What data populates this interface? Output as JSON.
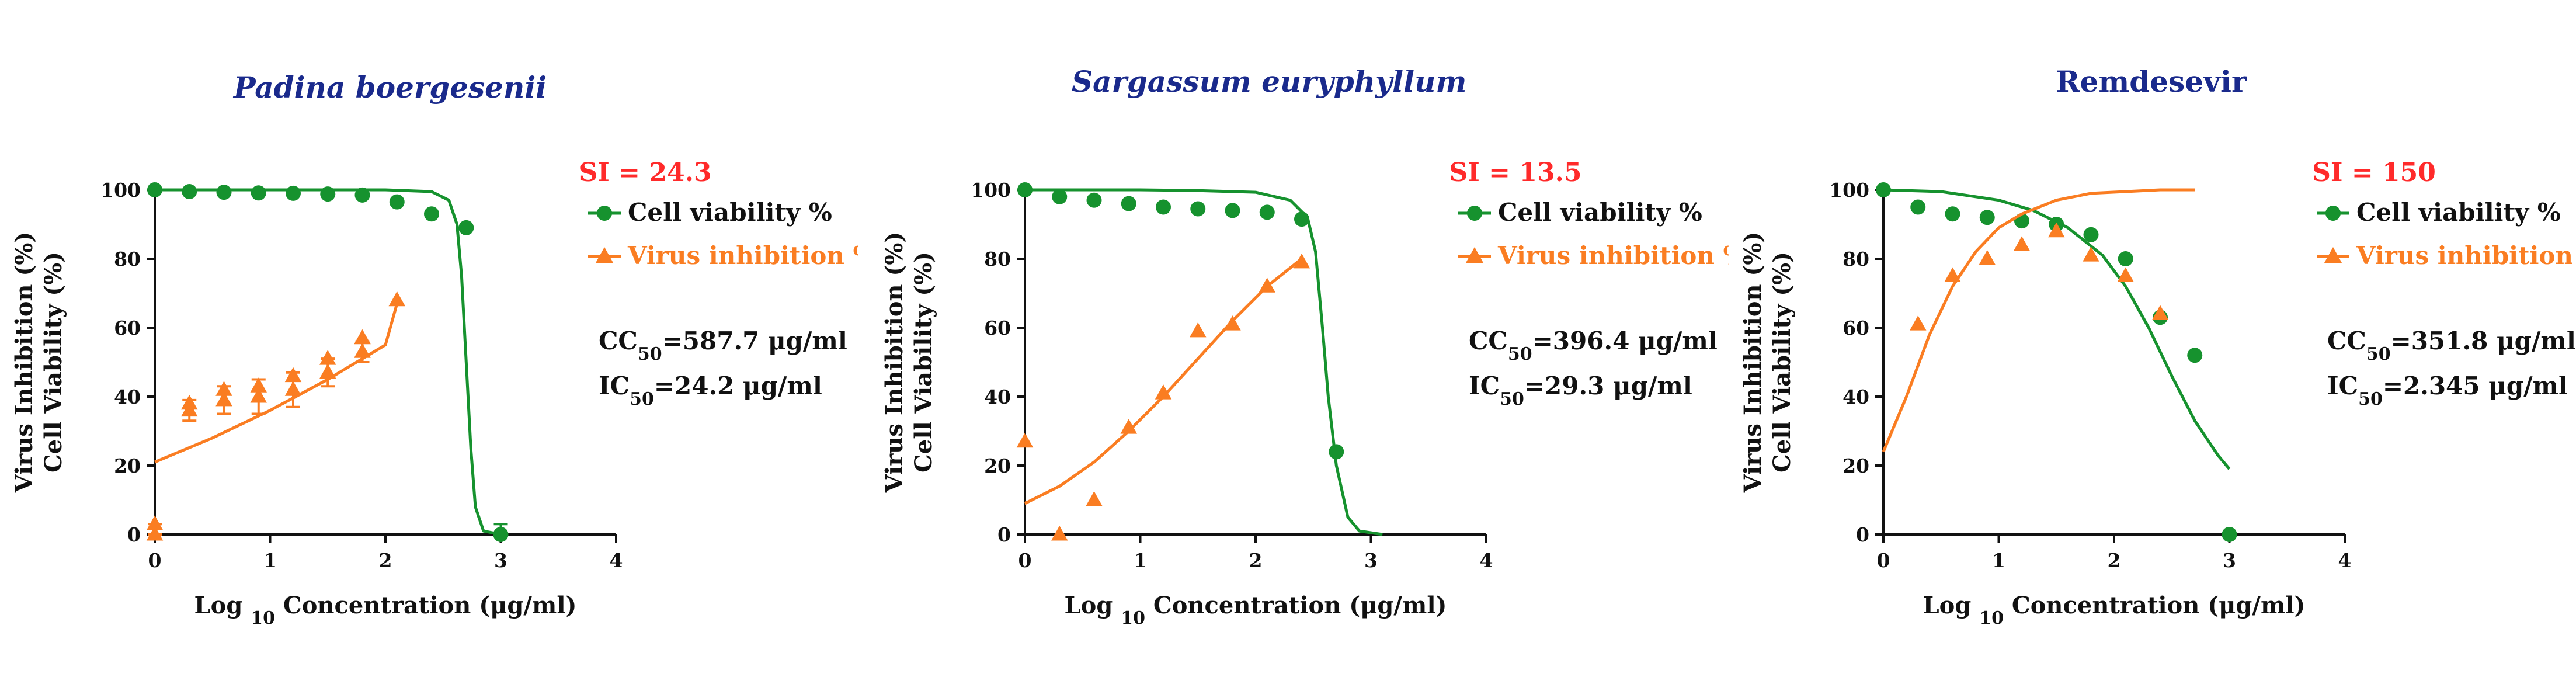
{
  "figure": {
    "colors": {
      "cell": "#16922e",
      "virus": "#fa7d22",
      "axis": "#111111",
      "title": "#1a2a8c",
      "si": "#ff2a2a"
    }
  },
  "chart_data": [
    {
      "type": "scatter",
      "title": "Padina boergesenii",
      "title_italic": true,
      "xlabel_prefix": "Log ",
      "xlabel_sub": "10",
      "xlabel_suffix": " Concentration (μg/ml)",
      "ylabel_lines": [
        "Virus Inhibition (%)",
        "Cell Viability (%)"
      ],
      "xlim": [
        0,
        4
      ],
      "ylim": [
        0,
        100
      ],
      "xticks": [
        0,
        1,
        2,
        3,
        4
      ],
      "yticks": [
        0,
        20,
        40,
        60,
        80,
        100
      ],
      "si": "SI = 24.3",
      "cc50": {
        "prefix": "CC",
        "sub": "50",
        "value": "=587.7 μg/ml"
      },
      "ic50": {
        "prefix": "IC",
        "sub": "50",
        "value": "=24.2 μg/ml"
      },
      "series": [
        {
          "name": "Cell viability %",
          "marker": "circle",
          "color": "#16922e",
          "x": [
            0,
            0.3,
            0.6,
            0.9,
            1.2,
            1.5,
            1.8,
            2.1,
            2.4,
            2.7,
            3.0
          ],
          "y": [
            100,
            99.5,
            99.3,
            99.1,
            99,
            98.8,
            98.5,
            96.5,
            93,
            89,
            0
          ],
          "error": [
            0,
            0,
            0,
            0,
            0,
            0,
            0,
            0,
            0,
            0,
            3
          ],
          "fit": {
            "x": [
              0,
              0.5,
              1,
              1.5,
              2,
              2.4,
              2.55,
              2.62,
              2.66,
              2.7,
              2.74,
              2.78,
              2.85,
              3.0
            ],
            "y": [
              100,
              100,
              100,
              100,
              100,
              99.5,
              97,
              90,
              75,
              50,
              25,
              8,
              1,
              0
            ]
          }
        },
        {
          "name": "Virus inhibition %",
          "marker": "triangle",
          "color": "#fa7d22",
          "x": [
            0,
            0,
            0.3,
            0.3,
            0.6,
            0.6,
            0.9,
            0.9,
            1.2,
            1.2,
            1.5,
            1.5,
            1.8,
            1.8,
            2.1
          ],
          "y": [
            0,
            3,
            36,
            38,
            39,
            42,
            40,
            43,
            42,
            46,
            47,
            51,
            53,
            57,
            68
          ],
          "error": [
            3,
            0,
            3,
            0,
            4,
            0,
            5,
            0,
            5,
            0,
            4,
            0,
            3,
            0,
            0
          ],
          "fit": {
            "x": [
              0,
              0.5,
              1,
              1.5,
              2,
              2.1
            ],
            "y": [
              21,
              28,
              36,
              45,
              55,
              67
            ]
          }
        }
      ]
    },
    {
      "type": "scatter",
      "title": "Sargassum euryphyllum",
      "title_italic": true,
      "xlabel_prefix": "Log ",
      "xlabel_sub": "10",
      "xlabel_suffix": " Concentration (μg/ml)",
      "ylabel_lines": [
        "Virus Inhibition (%)",
        "Cell Viability (%)"
      ],
      "xlim": [
        0,
        4
      ],
      "ylim": [
        0,
        100
      ],
      "xticks": [
        0,
        1,
        2,
        3,
        4
      ],
      "yticks": [
        0,
        20,
        40,
        60,
        80,
        100
      ],
      "si": "SI = 13.5",
      "cc50": {
        "prefix": "CC",
        "sub": "50",
        "value": "=396.4 μg/ml"
      },
      "ic50": {
        "prefix": "IC",
        "sub": "50",
        "value": "=29.3 μg/ml"
      },
      "series": [
        {
          "name": "Cell viability %",
          "marker": "circle",
          "color": "#16922e",
          "x": [
            0,
            0.3,
            0.6,
            0.9,
            1.2,
            1.5,
            1.8,
            2.1,
            2.4,
            2.7
          ],
          "y": [
            100,
            98,
            97,
            96,
            95,
            94.5,
            94,
            93.5,
            91.5,
            24
          ],
          "error": [
            0,
            0,
            0,
            0,
            0,
            0,
            0,
            0,
            0,
            0
          ],
          "fit": {
            "x": [
              0,
              0.5,
              1,
              1.5,
              2,
              2.3,
              2.45,
              2.52,
              2.58,
              2.63,
              2.7,
              2.8,
              2.9,
              3.1
            ],
            "y": [
              100,
              100,
              100,
              99.8,
              99.3,
              97,
              92,
              82,
              60,
              40,
              20,
              5,
              1,
              0
            ]
          }
        },
        {
          "name": "Virus inhibition %",
          "marker": "triangle",
          "color": "#fa7d22",
          "x": [
            0,
            0.3,
            0.6,
            0.9,
            1.2,
            1.5,
            1.8,
            2.1,
            2.4
          ],
          "y": [
            27,
            0,
            10,
            31,
            41,
            59,
            61,
            72,
            79
          ],
          "error": [
            0,
            0,
            0,
            0,
            0,
            0,
            0,
            0,
            0
          ],
          "fit": {
            "x": [
              0,
              0.3,
              0.6,
              0.9,
              1.2,
              1.5,
              1.8,
              2.1,
              2.4
            ],
            "y": [
              9,
              14,
              21,
              30,
              40,
              51,
              62,
              72,
              80
            ]
          }
        }
      ]
    },
    {
      "type": "scatter",
      "title": "Remdesevir",
      "title_italic": false,
      "xlabel_prefix": "Log ",
      "xlabel_sub": "10",
      "xlabel_suffix": " Concentration (μg/ml)",
      "ylabel_lines": [
        "Virus Inhibition (%)",
        "Cell Viability (%)"
      ],
      "xlim": [
        0,
        4
      ],
      "ylim": [
        0,
        100
      ],
      "xticks": [
        0,
        1,
        2,
        3,
        4
      ],
      "yticks": [
        0,
        20,
        40,
        60,
        80,
        100
      ],
      "si": "SI = 150",
      "cc50": {
        "prefix": "CC",
        "sub": "50",
        "value": "=351.8 μg/ml"
      },
      "ic50": {
        "prefix": "IC",
        "sub": "50",
        "value": "=2.345 μg/ml"
      },
      "series": [
        {
          "name": "Cell viability %",
          "marker": "circle",
          "color": "#16922e",
          "x": [
            0,
            0.3,
            0.6,
            0.9,
            1.2,
            1.5,
            1.8,
            2.1,
            2.4,
            2.7,
            3.0
          ],
          "y": [
            100,
            95,
            93,
            92,
            91,
            90,
            87,
            80,
            63,
            52,
            0
          ],
          "error": [
            0,
            0,
            0,
            0,
            0,
            0,
            0,
            0,
            0,
            0,
            0
          ],
          "fit": {
            "x": [
              0,
              0.5,
              1,
              1.3,
              1.6,
              1.9,
              2.1,
              2.3,
              2.5,
              2.7,
              2.9,
              3.0
            ],
            "y": [
              100,
              99.5,
              97,
              94,
              89,
              81,
              72,
              60,
              46,
              33,
              23,
              19
            ]
          }
        },
        {
          "name": "Virus inhibition %",
          "marker": "triangle",
          "color": "#fa7d22",
          "x": [
            0.3,
            0.6,
            0.9,
            1.2,
            1.5,
            1.8,
            2.1,
            2.4
          ],
          "y": [
            61,
            75,
            80,
            84,
            88,
            81,
            75,
            64
          ],
          "error": [
            0,
            0,
            0,
            0,
            0,
            0,
            0,
            0
          ],
          "fit": {
            "x": [
              0,
              0.2,
              0.4,
              0.6,
              0.8,
              1.0,
              1.2,
              1.5,
              1.8,
              2.1,
              2.4,
              2.7
            ],
            "y": [
              24,
              40,
              58,
              72,
              82,
              89,
              93,
              97,
              99,
              99.5,
              100,
              100
            ]
          }
        }
      ]
    }
  ]
}
